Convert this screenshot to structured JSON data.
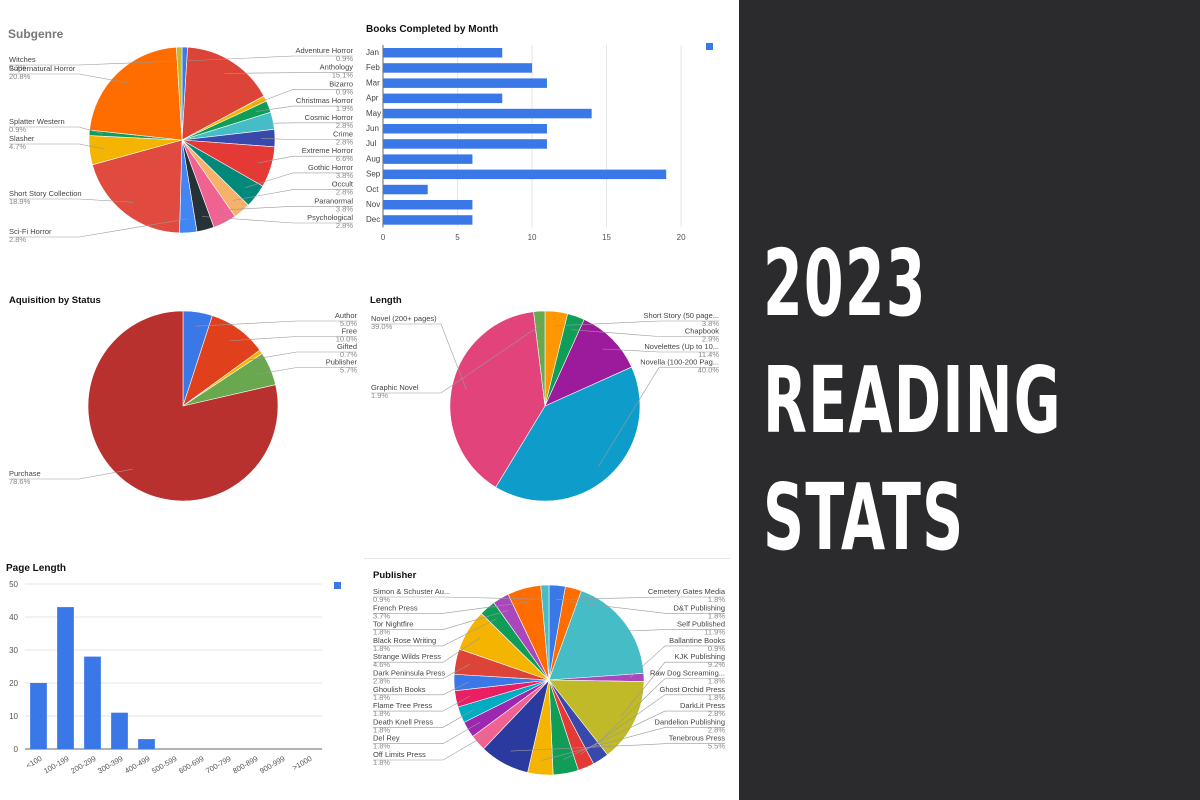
{
  "headline": [
    "2023",
    "READING",
    "STATS"
  ],
  "colors": {
    "bar": "#3b78e7",
    "background_right": "#2b2b2e"
  },
  "chart_data": [
    {
      "id": "subgenre",
      "type": "pie",
      "title": "Subgenre",
      "slices": [
        {
          "label": "Adventure Horror",
          "value": 0.9,
          "color": "#3b78e7",
          "side": "right"
        },
        {
          "label": "Anthology",
          "value": 15.1,
          "color": "#db4437",
          "side": "right"
        },
        {
          "label": "Bizarro",
          "value": 0.9,
          "color": "#f4b400",
          "side": "right"
        },
        {
          "label": "Christmas Horror",
          "value": 1.9,
          "color": "#0f9d58",
          "side": "right"
        },
        {
          "label": "Cosmic Horror",
          "value": 2.8,
          "color": "#46bdc6",
          "side": "right"
        },
        {
          "label": "Crime",
          "value": 2.8,
          "color": "#3949ab",
          "side": "right"
        },
        {
          "label": "Extreme Horror",
          "value": 6.6,
          "color": "#e53935",
          "side": "right"
        },
        {
          "label": "Gothic Horror",
          "value": 3.8,
          "color": "#00897b",
          "side": "right"
        },
        {
          "label": "Occult",
          "value": 2.8,
          "color": "#f6b26b",
          "side": "right"
        },
        {
          "label": "Paranormal",
          "value": 3.8,
          "color": "#f06292",
          "side": "right"
        },
        {
          "label": "Psychological",
          "value": 2.8,
          "color": "#263238",
          "side": "right"
        },
        {
          "label": "Sci-Fi Horror",
          "value": 2.8,
          "color": "#4285f4",
          "side": "left"
        },
        {
          "label": "Short Story Collection",
          "value": 18.9,
          "color": "#e04a3f",
          "side": "left"
        },
        {
          "label": "Slasher",
          "value": 4.7,
          "color": "#f4b400",
          "side": "left"
        },
        {
          "label": "Splatter Western",
          "value": 0.9,
          "color": "#0f9d58",
          "side": "left"
        },
        {
          "label": "Supernatural Horror",
          "value": 20.8,
          "color": "#ff6d00",
          "side": "left"
        },
        {
          "label": "Witches",
          "value": 0.9,
          "color": "#c5b92c",
          "side": "left"
        }
      ]
    },
    {
      "id": "months",
      "type": "bar",
      "orientation": "horizontal",
      "title": "Books Completed by Month",
      "categories": [
        "Jan",
        "Feb",
        "Mar",
        "Apr",
        "May",
        "Jun",
        "Jul",
        "Aug",
        "Sep",
        "Oct",
        "Nov",
        "Dec"
      ],
      "values": [
        8,
        10,
        11,
        8,
        14,
        11,
        11,
        6,
        19,
        3,
        6,
        6
      ],
      "xlim": [
        0,
        21
      ],
      "ticks": [
        0,
        5,
        10,
        15,
        20
      ],
      "grid": true,
      "legend": "top-right"
    },
    {
      "id": "acquisition",
      "type": "pie",
      "title": "Aquisition by Status",
      "slices": [
        {
          "label": "Author",
          "value": 5.0,
          "color": "#3b78e7",
          "side": "right"
        },
        {
          "label": "Free",
          "value": 10.0,
          "color": "#e0401c",
          "side": "right"
        },
        {
          "label": "Gifted",
          "value": 0.7,
          "color": "#f4b400",
          "side": "right"
        },
        {
          "label": "Publisher",
          "value": 5.7,
          "color": "#6aa84f",
          "side": "right"
        },
        {
          "label": "Purchase",
          "value": 78.6,
          "color": "#b8312f",
          "side": "left"
        }
      ]
    },
    {
      "id": "length",
      "type": "pie",
      "title": "Length",
      "slices": [
        {
          "label": "Short Story (50 page...",
          "value": 3.8,
          "color": "#ff9800",
          "side": "right"
        },
        {
          "label": "Chapbook",
          "value": 2.9,
          "color": "#0f9d58",
          "side": "right"
        },
        {
          "label": "Novelettes (Up to 10...",
          "value": 11.4,
          "color": "#9c1a9c",
          "side": "right"
        },
        {
          "label": "Novella (100-200 Pag...",
          "value": 40.0,
          "color": "#0e9dca",
          "side": "right"
        },
        {
          "label": "Novel (200+ pages)",
          "value": 39.0,
          "color": "#e2437a",
          "side": "left"
        },
        {
          "label": "Graphic Novel",
          "value": 1.9,
          "color": "#6aa84f",
          "side": "left"
        }
      ]
    },
    {
      "id": "pages",
      "type": "bar",
      "title": "Page Length",
      "categories": [
        "<100",
        "100-199",
        "200-299",
        "300-399",
        "400-499",
        "500-599",
        "600-699",
        "700-799",
        "800-899",
        "900-999",
        ">1000"
      ],
      "values": [
        20,
        43,
        28,
        11,
        3,
        0,
        0,
        0,
        0,
        0,
        0
      ],
      "ylim": [
        0,
        50
      ],
      "ticks": [
        0,
        10,
        20,
        30,
        40,
        50
      ],
      "grid": true,
      "legend": "top-right"
    },
    {
      "id": "publisher",
      "type": "pie",
      "title": "Publisher",
      "slices": [
        {
          "label": "Cemetery Gates Media",
          "value": 1.8,
          "color": "#3b78e7",
          "side": "right"
        },
        {
          "label": "D&T Publishing",
          "value": 1.8,
          "color": "#ff6d00",
          "side": "right"
        },
        {
          "label": "Self Published",
          "value": 11.9,
          "color": "#46bdc6",
          "side": "right"
        },
        {
          "label": "Ballantine Books",
          "value": 0.9,
          "color": "#ab47bc",
          "side": "right"
        },
        {
          "label": "KJK Publishing",
          "value": 9.2,
          "color": "#c0b928",
          "side": "right"
        },
        {
          "label": "Raw Dog Screaming...",
          "value": 1.8,
          "color": "#3949ab",
          "side": "right"
        },
        {
          "label": "Ghost Orchid Press",
          "value": 1.8,
          "color": "#e53935",
          "side": "right"
        },
        {
          "label": "DarkLit Press",
          "value": 2.8,
          "color": "#0f9d58",
          "side": "right"
        },
        {
          "label": "Dandelion Publishing",
          "value": 2.8,
          "color": "#f4b400",
          "side": "right"
        },
        {
          "label": "Tenebrous Press",
          "value": 5.5,
          "color": "#2b3a9f",
          "side": "right"
        },
        {
          "label": "Off Limits Press",
          "value": 1.8,
          "color": "#f06292",
          "side": "left"
        },
        {
          "label": "Del Rey",
          "value": 1.8,
          "color": "#9c27b0",
          "side": "left"
        },
        {
          "label": "Death Knell Press",
          "value": 1.8,
          "color": "#00acc1",
          "side": "left"
        },
        {
          "label": "Flame Tree Press",
          "value": 1.8,
          "color": "#e91e63",
          "side": "left"
        },
        {
          "label": "Ghoulish Books",
          "value": 1.8,
          "color": "#3b78e7",
          "side": "left"
        },
        {
          "label": "Dark Peninsula Press",
          "value": 2.8,
          "color": "#db4437",
          "side": "left"
        },
        {
          "label": "Strange Wilds Press",
          "value": 4.6,
          "color": "#f4b400",
          "side": "left"
        },
        {
          "label": "Black Rose Writing",
          "value": 1.8,
          "color": "#0f9d58",
          "side": "left"
        },
        {
          "label": "Tor Nightfire",
          "value": 1.8,
          "color": "#ab47bc",
          "side": "left"
        },
        {
          "label": "French Press",
          "value": 3.7,
          "color": "#ff6d00",
          "side": "left"
        },
        {
          "label": "Simon & Schuster Au...",
          "value": 0.9,
          "color": "#46bdc6",
          "side": "left"
        }
      ]
    }
  ]
}
